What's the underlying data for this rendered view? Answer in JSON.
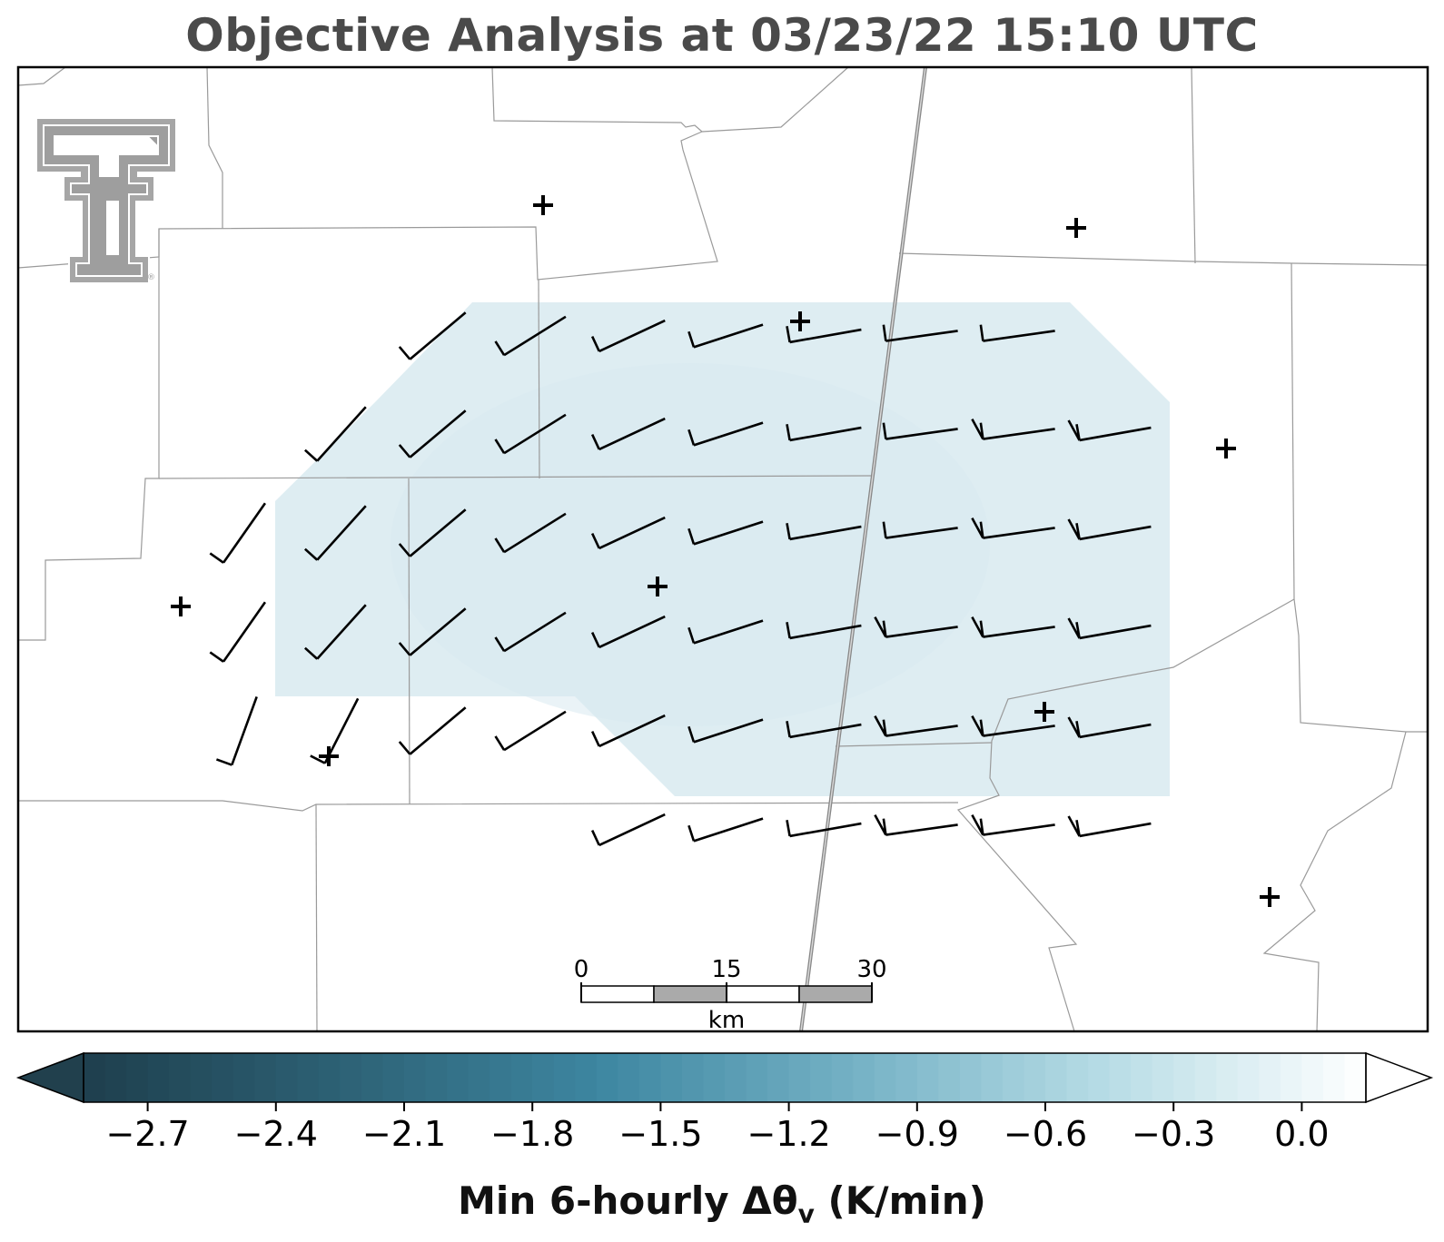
{
  "title": "Objective Analysis at 03/23/22 15:10 UTC",
  "colorbar": {
    "label_main": "Min 6-hourly Δθ",
    "label_sub": "v",
    "label_unit": " (K/min)",
    "min": -2.85,
    "max": 0.15,
    "ticks": [
      "−2.7",
      "−2.4",
      "−2.1",
      "−1.8",
      "−1.5",
      "−1.2",
      "−0.9",
      "−0.6",
      "−0.3",
      "0.0"
    ],
    "tick_values": [
      -2.7,
      -2.4,
      -2.1,
      -1.8,
      -1.5,
      -1.2,
      -0.9,
      -0.6,
      -0.3,
      0.0
    ],
    "colors_low_to_high": [
      "#1e3f4d",
      "#2d6175",
      "#3d86a0",
      "#74b1c5",
      "#b8dde6",
      "#ffffff"
    ]
  },
  "scale_bar": {
    "labels": [
      "0",
      "15",
      "30"
    ],
    "unit": "km"
  },
  "analysis_fill_color": "#deedf2",
  "logo": {
    "name": "texas-tech-double-t-logo",
    "color": "#9e9e9e"
  },
  "station_marker": "+",
  "wind_barbs_present": true
}
